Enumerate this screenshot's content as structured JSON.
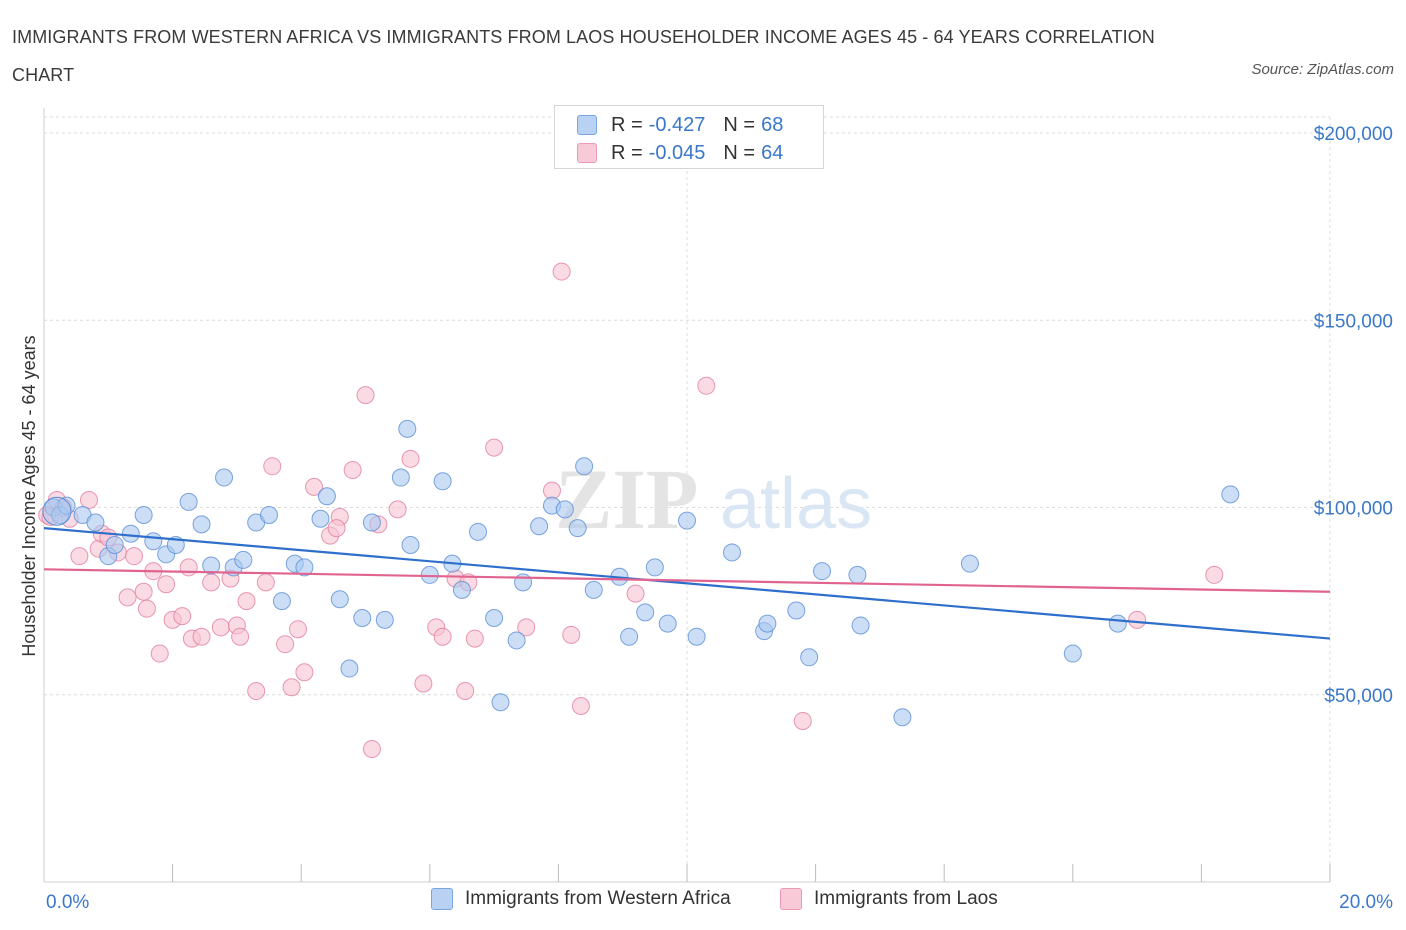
{
  "title": "IMMIGRANTS FROM WESTERN AFRICA VS IMMIGRANTS FROM LAOS HOUSEHOLDER INCOME AGES 45 - 64 YEARS CORRELATION CHART",
  "source": "Source: ZipAtlas.com",
  "watermark": {
    "zip": "ZIP",
    "atlas": "atlas"
  },
  "legend": {
    "r_label": "R =",
    "n_label": "N =",
    "rows": [
      {
        "r": "-0.427",
        "n": "68",
        "color": "#a9c8f0",
        "border": "#6f9fdb"
      },
      {
        "r": "-0.045",
        "n": "64",
        "color": "#f5bfd0",
        "border": "#e88aa8"
      }
    ]
  },
  "colors": {
    "blue_fill": "#a9c8f0",
    "blue_stroke": "#5b8fd6",
    "blue_line": "#2f6fcc",
    "pink_fill": "#f7c3d2",
    "pink_stroke": "#e27ea0",
    "pink_line": "#e0648f",
    "axis_label": "#3a78c9",
    "grid": "#dcdcdc"
  },
  "chart_data": {
    "type": "scatter",
    "xlabel": "",
    "ylabel": "Householder Income Ages 45 - 64 years",
    "xlim": [
      0,
      20
    ],
    "ylim": [
      0,
      200000
    ],
    "x_tick_labels": [
      {
        "value": 0,
        "label": "0.0%"
      },
      {
        "value": 20,
        "label": "20.0%"
      }
    ],
    "y_tick_labels": [
      {
        "value": 200000,
        "label": "$200,000"
      },
      {
        "value": 150000,
        "label": "$150,000"
      },
      {
        "value": 100000,
        "label": "$100,000"
      },
      {
        "value": 50000,
        "label": "$50,000"
      }
    ],
    "grid": true,
    "legend_position": "bottom",
    "series": [
      {
        "name": "Immigrants from Western Africa",
        "trend": {
          "x": [
            0,
            20
          ],
          "y": [
            94500,
            65000
          ]
        },
        "points": [
          [
            0.15,
            100000
          ],
          [
            0.25,
            98000
          ],
          [
            0.35,
            100500
          ],
          [
            0.6,
            98000
          ],
          [
            0.8,
            96000
          ],
          [
            1.0,
            87000
          ],
          [
            1.1,
            90000
          ],
          [
            1.35,
            93000
          ],
          [
            1.55,
            98000
          ],
          [
            1.7,
            91000
          ],
          [
            1.9,
            87500
          ],
          [
            2.05,
            90000
          ],
          [
            2.25,
            101500
          ],
          [
            2.45,
            95500
          ],
          [
            2.6,
            84500
          ],
          [
            2.8,
            108000
          ],
          [
            2.95,
            84000
          ],
          [
            3.1,
            86000
          ],
          [
            3.3,
            96000
          ],
          [
            3.5,
            98000
          ],
          [
            3.7,
            75000
          ],
          [
            3.9,
            85000
          ],
          [
            4.05,
            84000
          ],
          [
            4.3,
            97000
          ],
          [
            4.4,
            103000
          ],
          [
            4.6,
            75500
          ],
          [
            4.75,
            57000
          ],
          [
            4.95,
            70500
          ],
          [
            5.1,
            96000
          ],
          [
            5.3,
            70000
          ],
          [
            5.55,
            108000
          ],
          [
            5.65,
            121000
          ],
          [
            5.7,
            90000
          ],
          [
            6.0,
            82000
          ],
          [
            6.2,
            107000
          ],
          [
            6.35,
            85000
          ],
          [
            6.5,
            78000
          ],
          [
            6.75,
            93500
          ],
          [
            7.0,
            70500
          ],
          [
            7.1,
            48000
          ],
          [
            7.35,
            64500
          ],
          [
            7.45,
            80000
          ],
          [
            7.7,
            95000
          ],
          [
            7.9,
            100500
          ],
          [
            8.1,
            99500
          ],
          [
            8.3,
            94500
          ],
          [
            8.4,
            111000
          ],
          [
            8.55,
            78000
          ],
          [
            8.95,
            81500
          ],
          [
            9.1,
            65500
          ],
          [
            9.35,
            72000
          ],
          [
            9.5,
            84000
          ],
          [
            9.7,
            69000
          ],
          [
            10.0,
            96500
          ],
          [
            10.15,
            65500
          ],
          [
            10.7,
            88000
          ],
          [
            11.2,
            67000
          ],
          [
            11.25,
            69000
          ],
          [
            11.7,
            72500
          ],
          [
            11.9,
            60000
          ],
          [
            12.1,
            83000
          ],
          [
            12.65,
            82000
          ],
          [
            12.7,
            68500
          ],
          [
            13.35,
            44000
          ],
          [
            14.4,
            85000
          ],
          [
            16.0,
            61000
          ],
          [
            16.7,
            69000
          ],
          [
            18.45,
            103500
          ]
        ]
      },
      {
        "name": "Immigrants from Laos",
        "trend": {
          "x": [
            0,
            20
          ],
          "y": [
            83500,
            77500
          ]
        },
        "points": [
          [
            0.05,
            98000
          ],
          [
            0.2,
            102000
          ],
          [
            0.4,
            97000
          ],
          [
            0.55,
            87000
          ],
          [
            0.7,
            102000
          ],
          [
            0.85,
            89000
          ],
          [
            0.9,
            93000
          ],
          [
            1.0,
            92000
          ],
          [
            1.15,
            88000
          ],
          [
            1.3,
            76000
          ],
          [
            1.4,
            87000
          ],
          [
            1.55,
            77500
          ],
          [
            1.6,
            73000
          ],
          [
            1.7,
            83000
          ],
          [
            1.8,
            61000
          ],
          [
            1.9,
            79500
          ],
          [
            2.0,
            70000
          ],
          [
            2.15,
            71000
          ],
          [
            2.25,
            84000
          ],
          [
            2.3,
            65000
          ],
          [
            2.45,
            65500
          ],
          [
            2.6,
            80000
          ],
          [
            2.75,
            68000
          ],
          [
            2.9,
            81000
          ],
          [
            3.0,
            68500
          ],
          [
            3.05,
            65500
          ],
          [
            3.15,
            75000
          ],
          [
            3.3,
            51000
          ],
          [
            3.45,
            80000
          ],
          [
            3.55,
            111000
          ],
          [
            3.75,
            63500
          ],
          [
            3.85,
            52000
          ],
          [
            3.95,
            67500
          ],
          [
            4.05,
            56000
          ],
          [
            4.2,
            105500
          ],
          [
            4.45,
            92500
          ],
          [
            4.6,
            97500
          ],
          [
            4.8,
            110000
          ],
          [
            5.0,
            130000
          ],
          [
            5.1,
            35500
          ],
          [
            5.2,
            95500
          ],
          [
            5.5,
            99500
          ],
          [
            5.7,
            113000
          ],
          [
            5.9,
            53000
          ],
          [
            6.1,
            68000
          ],
          [
            6.2,
            65500
          ],
          [
            6.4,
            81000
          ],
          [
            6.55,
            51000
          ],
          [
            6.7,
            65000
          ],
          [
            7.0,
            116000
          ],
          [
            7.5,
            68000
          ],
          [
            7.9,
            104500
          ],
          [
            8.05,
            163000
          ],
          [
            8.2,
            66000
          ],
          [
            8.35,
            47000
          ],
          [
            9.2,
            77000
          ],
          [
            10.3,
            132500
          ],
          [
            11.8,
            43000
          ],
          [
            17.0,
            70000
          ],
          [
            18.2,
            82000
          ],
          [
            0.1,
            97500
          ],
          [
            0.3,
            100000
          ],
          [
            4.55,
            94500
          ],
          [
            6.6,
            80000
          ]
        ]
      }
    ]
  }
}
